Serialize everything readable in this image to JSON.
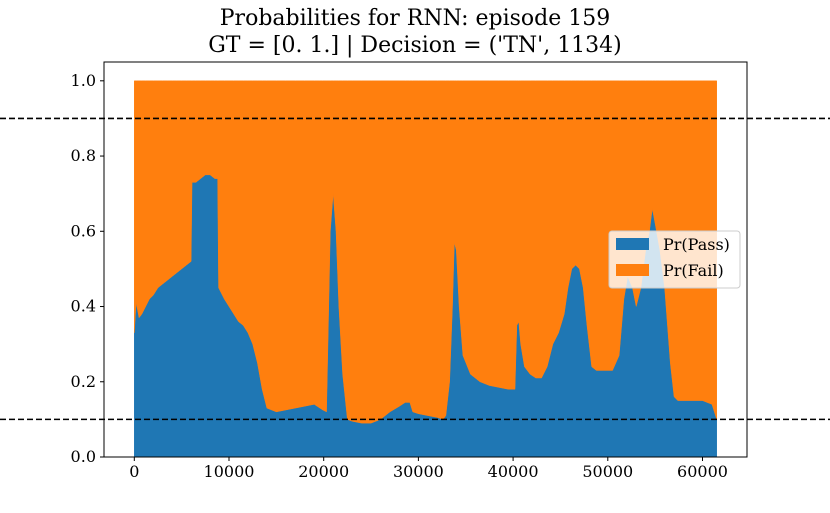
{
  "chart_data": {
    "type": "area",
    "title": "Probabilities for RNN: episode 159",
    "subtitle": "GT = [0. 1.] | Decision = ('TN', 1134)",
    "xlabel": "",
    "ylabel": "",
    "xlim": [
      -3200,
      64700
    ],
    "ylim": [
      0,
      1.05
    ],
    "xticks": [
      0,
      10000,
      20000,
      30000,
      40000,
      50000,
      60000
    ],
    "yticks": [
      0.0,
      0.2,
      0.4,
      0.6,
      0.8,
      1.0
    ],
    "ytick_labels": [
      "0.0",
      "0.2",
      "0.4",
      "0.6",
      "0.8",
      "1.0"
    ],
    "grid": false,
    "stacked": true,
    "x": [
      0,
      200,
      500,
      800,
      1200,
      1600,
      2000,
      2500,
      3000,
      3500,
      4000,
      4500,
      5000,
      5500,
      6000,
      6100,
      6500,
      7000,
      7500,
      8000,
      8500,
      8800,
      8900,
      9500,
      10000,
      10500,
      11000,
      11500,
      12000,
      12500,
      13000,
      13500,
      14000,
      15000,
      16000,
      17000,
      18000,
      19000,
      19600,
      19900,
      20300,
      20700,
      21000,
      21300,
      21600,
      22000,
      22500,
      23000,
      24000,
      25000,
      26000,
      27000,
      28000,
      28600,
      29100,
      29400,
      30000,
      31000,
      32000,
      32600,
      32900,
      33300,
      33600,
      33800,
      34000,
      34300,
      34700,
      35500,
      36500,
      37500,
      38500,
      39500,
      40200,
      40400,
      40600,
      40800,
      41200,
      41800,
      42400,
      43000,
      43600,
      44200,
      44800,
      45400,
      45800,
      46200,
      46600,
      47000,
      47400,
      47800,
      48300,
      48800,
      49500,
      50500,
      51200,
      51700,
      52100,
      52600,
      53000,
      53500,
      54000,
      54400,
      54700,
      55000,
      55500,
      56000,
      56600,
      57000,
      57400,
      58000,
      59000,
      60000,
      61000,
      61500
    ],
    "series": [
      {
        "name": "Pr(Pass)",
        "color": "#1f77b4",
        "values": [
          0.33,
          0.41,
          0.37,
          0.38,
          0.4,
          0.42,
          0.43,
          0.45,
          0.46,
          0.47,
          0.48,
          0.49,
          0.5,
          0.51,
          0.52,
          0.73,
          0.73,
          0.74,
          0.75,
          0.75,
          0.74,
          0.74,
          0.45,
          0.42,
          0.4,
          0.38,
          0.36,
          0.35,
          0.33,
          0.3,
          0.25,
          0.18,
          0.13,
          0.12,
          0.125,
          0.13,
          0.135,
          0.14,
          0.13,
          0.125,
          0.12,
          0.6,
          0.7,
          0.6,
          0.4,
          0.22,
          0.1,
          0.095,
          0.09,
          0.09,
          0.1,
          0.12,
          0.135,
          0.145,
          0.145,
          0.12,
          0.115,
          0.11,
          0.105,
          0.1,
          0.11,
          0.2,
          0.4,
          0.57,
          0.55,
          0.4,
          0.27,
          0.22,
          0.2,
          0.19,
          0.185,
          0.18,
          0.18,
          0.35,
          0.36,
          0.3,
          0.24,
          0.22,
          0.21,
          0.21,
          0.24,
          0.3,
          0.33,
          0.38,
          0.45,
          0.5,
          0.51,
          0.5,
          0.45,
          0.35,
          0.24,
          0.23,
          0.23,
          0.23,
          0.27,
          0.42,
          0.48,
          0.45,
          0.4,
          0.45,
          0.55,
          0.6,
          0.66,
          0.62,
          0.55,
          0.45,
          0.25,
          0.16,
          0.15,
          0.15,
          0.15,
          0.15,
          0.14,
          0.1
        ]
      },
      {
        "name": "Pr(Fail)",
        "color": "#ff7f0e",
        "values": [
          0.67,
          0.59,
          0.63,
          0.62,
          0.6,
          0.58,
          0.57,
          0.55,
          0.54,
          0.53,
          0.52,
          0.51,
          0.5,
          0.49,
          0.48,
          0.27,
          0.27,
          0.26,
          0.25,
          0.25,
          0.26,
          0.26,
          0.55,
          0.58,
          0.6,
          0.62,
          0.64,
          0.65,
          0.67,
          0.7,
          0.75,
          0.82,
          0.87,
          0.88,
          0.875,
          0.87,
          0.865,
          0.86,
          0.87,
          0.875,
          0.88,
          0.4,
          0.3,
          0.4,
          0.6,
          0.78,
          0.9,
          0.905,
          0.91,
          0.91,
          0.9,
          0.88,
          0.865,
          0.855,
          0.855,
          0.88,
          0.885,
          0.89,
          0.895,
          0.9,
          0.89,
          0.8,
          0.6,
          0.43,
          0.45,
          0.6,
          0.73,
          0.78,
          0.8,
          0.81,
          0.815,
          0.82,
          0.82,
          0.65,
          0.64,
          0.7,
          0.76,
          0.78,
          0.79,
          0.79,
          0.76,
          0.7,
          0.67,
          0.62,
          0.55,
          0.5,
          0.49,
          0.5,
          0.55,
          0.65,
          0.76,
          0.77,
          0.77,
          0.77,
          0.73,
          0.58,
          0.52,
          0.55,
          0.6,
          0.55,
          0.45,
          0.4,
          0.34,
          0.38,
          0.45,
          0.55,
          0.75,
          0.84,
          0.85,
          0.85,
          0.85,
          0.85,
          0.86,
          0.9
        ]
      }
    ],
    "hlines": [
      {
        "y": 0.9,
        "style": "dashed",
        "color": "#000000"
      },
      {
        "y": 0.1,
        "style": "dashed",
        "color": "#000000"
      }
    ],
    "legend": {
      "placement": "center-right",
      "entries": [
        "Pr(Pass)",
        "Pr(Fail)"
      ]
    }
  }
}
